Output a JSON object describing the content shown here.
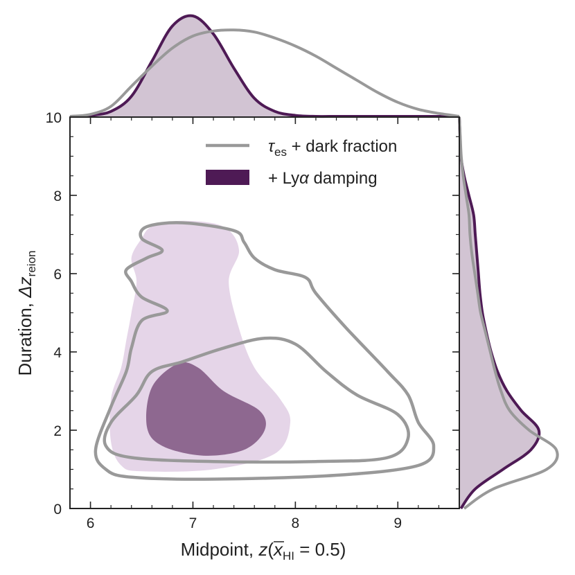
{
  "chart_data": {
    "type": "contour",
    "xlabel": {
      "prefix": "Midpoint, ",
      "var": "z",
      "open": "(",
      "xbar": "x",
      "sub": "HI",
      "rest": " = 0.5)"
    },
    "ylabel": {
      "prefix": "Duration, ",
      "var": "Δz",
      "sub": "reion"
    },
    "xlim": [
      5.8,
      9.6
    ],
    "ylim": [
      0,
      10
    ],
    "xticks": [
      6,
      7,
      8,
      9
    ],
    "yticks": [
      0,
      2,
      4,
      6,
      8,
      10
    ],
    "legend_position": "top-right",
    "colors": {
      "gray": "#999999",
      "purple": "#4e1a55",
      "purple_light": "#e5d5e8",
      "purple_dark": "#8e6890",
      "marginal_fill": "#d2c4d3"
    },
    "series": [
      {
        "name": "τ_es + dark fraction",
        "legend_main": "τ",
        "legend_sub": "es",
        "legend_rest": " + dark fraction",
        "style": "line",
        "contours": [
          {
            "level": "outer",
            "points": [
              [
                6.5,
                6.9
              ],
              [
                6.55,
                7.2
              ],
              [
                6.9,
                7.3
              ],
              [
                7.4,
                7.1
              ],
              [
                7.5,
                6.8
              ],
              [
                7.6,
                6.4
              ],
              [
                7.8,
                6.1
              ],
              [
                8.1,
                5.9
              ],
              [
                8.2,
                5.5
              ],
              [
                8.5,
                4.6
              ],
              [
                8.9,
                3.5
              ],
              [
                9.1,
                2.9
              ],
              [
                9.2,
                2.2
              ],
              [
                9.35,
                1.6
              ],
              [
                9.2,
                1.1
              ],
              [
                8.4,
                0.85
              ],
              [
                7.2,
                0.75
              ],
              [
                6.4,
                0.8
              ],
              [
                6.15,
                1.0
              ],
              [
                6.05,
                1.5
              ],
              [
                6.2,
                2.6
              ],
              [
                6.35,
                3.5
              ],
              [
                6.4,
                4.1
              ],
              [
                6.5,
                4.8
              ],
              [
                6.75,
                5.05
              ],
              [
                6.5,
                5.4
              ],
              [
                6.4,
                5.8
              ],
              [
                6.35,
                6.1
              ],
              [
                6.55,
                6.4
              ],
              [
                6.7,
                6.6
              ],
              [
                6.5,
                6.9
              ]
            ]
          },
          {
            "level": "inner",
            "points": [
              [
                6.45,
                2.9
              ],
              [
                6.6,
                3.5
              ],
              [
                6.9,
                3.75
              ],
              [
                7.3,
                4.1
              ],
              [
                7.7,
                4.35
              ],
              [
                8.0,
                4.2
              ],
              [
                8.3,
                3.5
              ],
              [
                8.6,
                2.9
              ],
              [
                9.0,
                2.4
              ],
              [
                9.1,
                1.8
              ],
              [
                8.9,
                1.3
              ],
              [
                8.2,
                1.2
              ],
              [
                7.2,
                1.2
              ],
              [
                6.4,
                1.3
              ],
              [
                6.15,
                1.6
              ],
              [
                6.2,
                2.2
              ],
              [
                6.45,
                2.9
              ]
            ]
          }
        ],
        "marginal_x": {
          "x": [
            5.8,
            6.0,
            6.2,
            6.4,
            6.6,
            6.8,
            7.0,
            7.2,
            7.4,
            7.6,
            7.8,
            8.0,
            8.2,
            8.4,
            8.6,
            8.8,
            9.0,
            9.2,
            9.4,
            9.6
          ],
          "density": [
            0.0,
            0.02,
            0.1,
            0.3,
            0.5,
            0.68,
            0.8,
            0.85,
            0.86,
            0.84,
            0.78,
            0.7,
            0.6,
            0.48,
            0.36,
            0.24,
            0.14,
            0.07,
            0.03,
            0.0
          ]
        },
        "marginal_y": {
          "y": [
            0.0,
            0.5,
            1.0,
            1.5,
            2.0,
            2.5,
            3.0,
            3.5,
            4.0,
            4.5,
            5.0,
            5.5,
            6.0,
            6.5,
            7.0,
            7.5,
            8.0,
            8.5,
            9.0,
            9.5,
            10.0
          ],
          "density": [
            0.05,
            0.35,
            0.9,
            1.0,
            0.72,
            0.52,
            0.43,
            0.37,
            0.32,
            0.27,
            0.22,
            0.19,
            0.16,
            0.13,
            0.11,
            0.1,
            0.07,
            0.04,
            0.02,
            0.01,
            0.0
          ]
        }
      },
      {
        "name": "+ Lyα damping",
        "legend_main": "+ Ly",
        "legend_alpha": "α",
        "legend_rest": " damping",
        "style": "filled",
        "contours": [
          {
            "level": "outer",
            "points": [
              [
                6.5,
                6.9
              ],
              [
                6.6,
                7.2
              ],
              [
                6.9,
                7.35
              ],
              [
                7.3,
                7.2
              ],
              [
                7.45,
                6.6
              ],
              [
                7.35,
                5.8
              ],
              [
                7.45,
                4.6
              ],
              [
                7.6,
                3.6
              ],
              [
                7.85,
                2.8
              ],
              [
                7.95,
                2.2
              ],
              [
                7.8,
                1.4
              ],
              [
                7.2,
                1.0
              ],
              [
                6.5,
                0.95
              ],
              [
                6.3,
                1.1
              ],
              [
                6.2,
                1.7
              ],
              [
                6.2,
                2.8
              ],
              [
                6.3,
                3.6
              ],
              [
                6.35,
                4.3
              ],
              [
                6.4,
                5.0
              ],
              [
                6.45,
                5.8
              ],
              [
                6.4,
                6.4
              ],
              [
                6.5,
                6.9
              ]
            ]
          },
          {
            "level": "inner",
            "points": [
              [
                6.6,
                3.1
              ],
              [
                6.85,
                3.7
              ],
              [
                7.05,
                3.6
              ],
              [
                7.3,
                3.0
              ],
              [
                7.65,
                2.5
              ],
              [
                7.7,
                2.0
              ],
              [
                7.5,
                1.5
              ],
              [
                7.1,
                1.35
              ],
              [
                6.7,
                1.6
              ],
              [
                6.55,
                2.1
              ],
              [
                6.6,
                3.1
              ]
            ]
          }
        ],
        "marginal_x": {
          "x": [
            5.8,
            6.0,
            6.2,
            6.4,
            6.6,
            6.8,
            7.0,
            7.2,
            7.4,
            7.6,
            7.8,
            8.0,
            8.2,
            8.4,
            8.6,
            9.0,
            9.6
          ],
          "density": [
            0.0,
            0.01,
            0.05,
            0.2,
            0.55,
            0.9,
            1.0,
            0.82,
            0.48,
            0.18,
            0.05,
            0.01,
            0.0,
            0.0,
            0.0,
            0.0,
            0.0
          ]
        },
        "marginal_y": {
          "y": [
            0.0,
            0.5,
            1.0,
            1.5,
            2.0,
            2.5,
            3.0,
            3.5,
            4.0,
            4.5,
            5.0,
            5.5,
            6.0,
            6.5,
            7.0,
            7.5,
            8.0,
            8.5,
            9.0,
            9.5,
            10.0
          ],
          "density": [
            0.02,
            0.2,
            0.55,
            0.9,
            1.0,
            0.78,
            0.6,
            0.48,
            0.4,
            0.34,
            0.29,
            0.26,
            0.24,
            0.22,
            0.2,
            0.18,
            0.12,
            0.06,
            0.02,
            0.01,
            0.0
          ]
        }
      }
    ]
  }
}
